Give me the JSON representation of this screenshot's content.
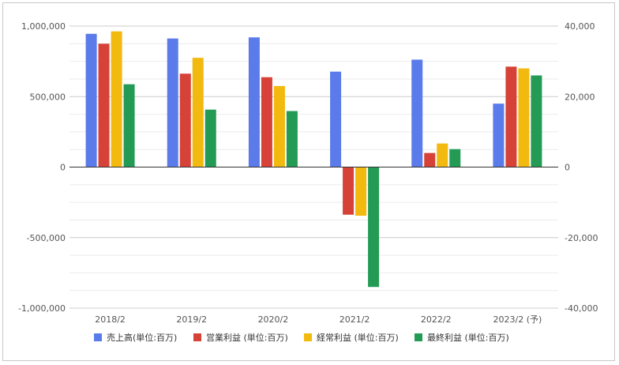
{
  "chart_data": {
    "type": "bar",
    "categories": [
      "2018/2",
      "2019/2",
      "2020/2",
      "2021/2",
      "2022/2",
      "2023/2 (予)"
    ],
    "series": [
      {
        "name": "売上高(単位:百万)",
        "axis": "left",
        "color": "#5b7bea",
        "values": [
          945000,
          912000,
          920000,
          677000,
          762000,
          450000
        ]
      },
      {
        "name": "営業利益 (単位:百万)",
        "axis": "right",
        "color": "#d64237",
        "values": [
          35000,
          26500,
          25500,
          -13500,
          4000,
          28500
        ]
      },
      {
        "name": "経常利益 (単位:百万)",
        "axis": "right",
        "color": "#f2b90f",
        "values": [
          38500,
          31000,
          23000,
          -13800,
          6700,
          28000
        ]
      },
      {
        "name": "最終利益 (単位:百万)",
        "axis": "right",
        "color": "#239b55",
        "values": [
          23500,
          16300,
          15900,
          -34000,
          5100,
          26000
        ]
      }
    ],
    "y_left": {
      "ylim": [
        -1000000,
        1000000
      ],
      "ticks": [
        1000000,
        500000,
        0,
        -500000,
        -1000000
      ],
      "tick_labels": [
        "1,000,000",
        "500,000",
        "0",
        "-500,000",
        "-1,000,000"
      ]
    },
    "y_right": {
      "ylim": [
        -40000,
        40000
      ],
      "ticks": [
        40000,
        20000,
        0,
        -20000,
        -40000
      ],
      "tick_labels": [
        "40,000",
        "20,000",
        "0",
        "-20,000",
        "-40,000"
      ]
    },
    "grid": true,
    "legend": "bottom",
    "title": "",
    "xlabel": "",
    "ylabel": ""
  }
}
